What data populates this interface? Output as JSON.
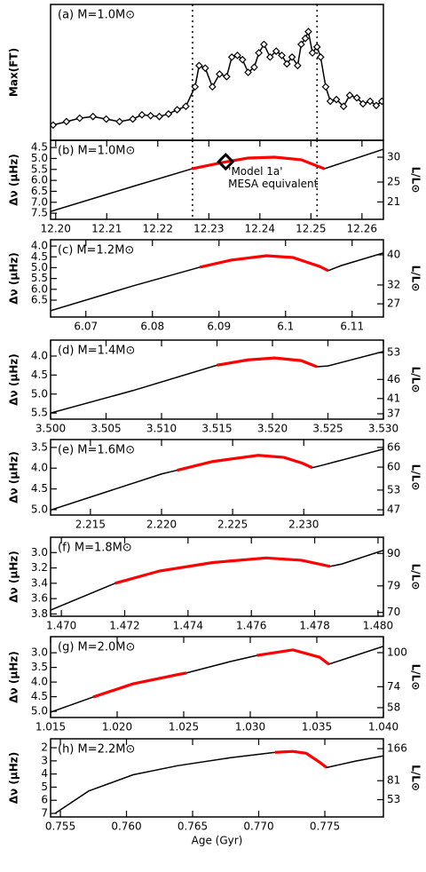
{
  "chart_data": [
    {
      "type": "line",
      "label": "(a) M=1.0M⊙",
      "ylabel": "Max(FT)",
      "xlim": [
        12.199,
        12.2642
      ],
      "ylim": [
        0,
        160
      ],
      "vlines": [
        12.2268,
        12.2512
      ],
      "series": [
        {
          "color": "#000000",
          "markers": true,
          "x": [
            12.1995,
            12.2021,
            12.2047,
            12.2073,
            12.2099,
            12.2125,
            12.2151,
            12.2169,
            12.2186,
            12.2203,
            12.2221,
            12.2238,
            12.2255,
            12.2273,
            12.2281,
            12.2293,
            12.2307,
            12.2321,
            12.2335,
            12.2345,
            12.2356,
            12.2366,
            12.2377,
            12.2389,
            12.2398,
            12.2408,
            12.242,
            12.2432,
            12.2443,
            12.2453,
            12.2463,
            12.2474,
            12.2481,
            12.2489,
            12.2495,
            12.2503,
            12.2512,
            12.2519,
            12.2529,
            12.2538,
            12.255,
            12.2564,
            12.2576,
            12.259,
            12.2602,
            12.2616,
            12.2628,
            12.2639
          ],
          "values": [
            18,
            22,
            26,
            28,
            25,
            22,
            25,
            30,
            29,
            28,
            31,
            36,
            40,
            63,
            88,
            85,
            63,
            78,
            75,
            98,
            100,
            95,
            80,
            86,
            103,
            113,
            98,
            105,
            100,
            90,
            98,
            88,
            113,
            120,
            128,
            103,
            110,
            98,
            63,
            46,
            48,
            40,
            53,
            50,
            43,
            46,
            41,
            46
          ]
        }
      ]
    },
    {
      "type": "line",
      "label": "(b) M=1.0M⊙",
      "ylabel": "Δν (μHz)",
      "y2label": "L/L⊙",
      "xlim": [
        12.199,
        12.2642
      ],
      "ylim": [
        7.78,
        4.17
      ],
      "y2lim": [
        17.5,
        33.4
      ],
      "xticks": [
        {
          "value": 12.2,
          "label": "12.20"
        },
        12.21,
        12.22,
        12.23,
        12.24,
        12.25,
        12.26
      ],
      "yticks": [
        4.5,
        {
          "value": 5,
          "label": "5.0"
        },
        5.5,
        {
          "value": 6,
          "label": "6.0"
        },
        6.5,
        {
          "value": 7,
          "label": "7.0"
        },
        7.5
      ],
      "y2ticks": [
        30,
        25,
        21
      ],
      "vlines": [
        12.2268,
        12.2512
      ],
      "series": [
        {
          "color": "#000000",
          "x": [
            12.199,
            12.2151,
            12.2267,
            12.2325,
            12.2377,
            12.2429,
            12.2481,
            12.2526,
            12.2642
          ],
          "values": [
            7.42,
            6.28,
            5.47,
            5.19,
            4.98,
            4.94,
            5.06,
            5.47,
            4.58
          ]
        },
        {
          "color": "#ff0000",
          "x": [
            12.2267,
            12.2325,
            12.2377,
            12.2429,
            12.2481,
            12.2526
          ],
          "values": [
            5.47,
            5.19,
            4.98,
            4.94,
            5.06,
            5.47
          ]
        },
        {
          "color": "#000000",
          "marker": "diamond",
          "x": [
            12.2333
          ],
          "values": [
            5.15
          ]
        }
      ],
      "annotation": {
        "text": [
          "'Model 1a'",
          "MESA equivalent"
        ],
        "x": 12.2338,
        "y": 5.6
      }
    },
    {
      "type": "line",
      "label": "(c) M=1.2M⊙",
      "ylabel": "Δν (μHz)",
      "y2label": "L/L⊙",
      "xlim": [
        6.0647,
        6.1147
      ],
      "ylim": [
        7.28,
        3.71
      ],
      "y2lim": [
        23.5,
        44
      ],
      "xticks": [
        6.07,
        6.08,
        6.09,
        6.1,
        6.11
      ],
      "yticks": [
        {
          "value": 4,
          "label": "4.0"
        },
        4.5,
        {
          "value": 5,
          "label": "5.0"
        },
        5.5,
        {
          "value": 6,
          "label": "6.0"
        },
        6.5
      ],
      "y2ticks": [
        40,
        32,
        27
      ],
      "series": [
        {
          "color": "#000000",
          "x": [
            6.0647,
            6.0771,
            6.0871,
            6.0918,
            6.0971,
            6.1011,
            6.1051,
            6.1064,
            6.1084,
            6.1147
          ],
          "values": [
            6.99,
            5.84,
            4.98,
            4.65,
            4.45,
            4.53,
            4.94,
            5.14,
            4.9,
            4.32
          ]
        },
        {
          "color": "#ff0000",
          "x": [
            6.0871,
            6.0918,
            6.0971,
            6.1011,
            6.1051,
            6.1064
          ],
          "values": [
            4.98,
            4.65,
            4.45,
            4.53,
            4.94,
            5.14
          ]
        }
      ]
    },
    {
      "type": "line",
      "label": "(d) M=1.4M⊙",
      "ylabel": "Δν (μHz)",
      "y2label": "L/L⊙",
      "xlim": [
        3.5,
        3.53
      ],
      "ylim": [
        5.66,
        3.58
      ],
      "y2lim": [
        35.6,
        56.3
      ],
      "xticks": [
        {
          "value": 3.5,
          "label": "3.500"
        },
        3.505,
        {
          "value": 3.51,
          "label": "3.510"
        },
        3.515,
        {
          "value": 3.52,
          "label": "3.520"
        },
        3.525,
        {
          "value": 3.53,
          "label": "3.530"
        }
      ],
      "yticks": [
        {
          "value": 4,
          "label": "4.0"
        },
        4.5,
        {
          "value": 5,
          "label": "5.0"
        },
        5.5
      ],
      "y2ticks": [
        53,
        46,
        41,
        37
      ],
      "series": [
        {
          "color": "#000000",
          "x": [
            3.5,
            3.5074,
            3.515,
            3.5178,
            3.5202,
            3.5226,
            3.524,
            3.525,
            3.53
          ],
          "values": [
            5.5,
            4.91,
            4.24,
            4.1,
            4.05,
            4.12,
            4.28,
            4.26,
            3.88
          ]
        },
        {
          "color": "#ff0000",
          "x": [
            3.515,
            3.5178,
            3.5202,
            3.5226,
            3.524
          ],
          "values": [
            4.24,
            4.1,
            4.05,
            4.12,
            4.28
          ]
        }
      ]
    },
    {
      "type": "line",
      "label": "(e) M=1.6M⊙",
      "ylabel": "Δν (μHz)",
      "y2label": "L/L⊙",
      "xlim": [
        2.2122,
        2.2356
      ],
      "ylim": [
        5.13,
        3.31
      ],
      "y2lim": [
        45.4,
        68.4
      ],
      "xticks": [
        2.215,
        {
          "value": 2.22,
          "label": "2.220"
        },
        2.225,
        {
          "value": 2.23,
          "label": "2.230"
        }
      ],
      "yticks": [
        3.5,
        {
          "value": 4,
          "label": "4.0"
        },
        4.5,
        {
          "value": 5,
          "label": "5.0"
        }
      ],
      "y2ticks": [
        66,
        60,
        53,
        47
      ],
      "series": [
        {
          "color": "#000000",
          "x": [
            2.2122,
            2.22,
            2.2211,
            2.2236,
            2.2268,
            2.2286,
            2.2299,
            2.2306,
            2.2313,
            2.2356
          ],
          "values": [
            5.01,
            4.14,
            4.05,
            3.84,
            3.69,
            3.74,
            3.88,
            3.99,
            3.93,
            3.54
          ]
        },
        {
          "color": "#ff0000",
          "x": [
            2.2211,
            2.2236,
            2.2268,
            2.2286,
            2.2299,
            2.2306
          ],
          "values": [
            4.05,
            3.84,
            3.69,
            3.74,
            3.88,
            3.99
          ]
        }
      ]
    },
    {
      "type": "line",
      "label": "(f) M=1.8M⊙",
      "ylabel": "Δν (μHz)",
      "y2label": "L/L⊙",
      "xlim": [
        1.46966,
        1.48017
      ],
      "ylim": [
        3.83,
        2.8
      ],
      "y2lim": [
        68.7,
        95.5
      ],
      "xticks": [
        {
          "value": 1.47,
          "label": "1.470"
        },
        1.472,
        1.474,
        1.476,
        1.478,
        {
          "value": 1.48,
          "label": "1.480"
        }
      ],
      "yticks": [
        {
          "value": 3,
          "label": "3.0"
        },
        3.2,
        3.4,
        3.6,
        3.8
      ],
      "y2ticks": [
        90,
        79,
        70
      ],
      "series": [
        {
          "color": "#000000",
          "x": [
            1.46966,
            1.4717,
            1.4731,
            1.47478,
            1.47646,
            1.47758,
            1.47848,
            1.47885,
            1.48017
          ],
          "values": [
            3.75,
            3.4,
            3.24,
            3.13,
            3.07,
            3.1,
            3.18,
            3.15,
            2.97
          ]
        },
        {
          "color": "#ff0000",
          "x": [
            1.4717,
            1.4731,
            1.47478,
            1.47646,
            1.47758,
            1.47848
          ],
          "values": [
            3.4,
            3.24,
            3.13,
            3.07,
            3.1,
            3.18
          ]
        }
      ]
    },
    {
      "type": "line",
      "label": "(g) M=2.0M⊙",
      "ylabel": "Δν (μHz)",
      "y2label": "L/L⊙",
      "xlim": [
        1.015,
        1.04
      ],
      "ylim": [
        5.21,
        2.45
      ],
      "y2lim": [
        50.5,
        112.2
      ],
      "xticks": [
        1.015,
        {
          "value": 1.02,
          "label": "1.020"
        },
        1.025,
        {
          "value": 1.03,
          "label": "1.030"
        },
        1.035,
        {
          "value": 1.04,
          "label": "1.040"
        }
      ],
      "yticks": [
        {
          "value": 3,
          "label": "3.0"
        },
        3.5,
        {
          "value": 4,
          "label": "4.0"
        },
        4.5,
        {
          "value": 5,
          "label": "5.0"
        }
      ],
      "y2ticks": [
        100,
        74,
        58
      ],
      "series": [
        {
          "color": "#000000",
          "x": [
            1.015,
            1.0182,
            1.0212,
            1.0245,
            1.0252,
            1.0285,
            1.0305,
            1.0332,
            1.0352,
            1.0359,
            1.04
          ],
          "values": [
            5.03,
            4.51,
            4.06,
            3.75,
            3.69,
            3.3,
            3.09,
            2.9,
            3.15,
            3.39,
            2.78
          ]
        },
        {
          "color": "#ff0000",
          "x": [
            1.0182,
            1.0212,
            1.0245,
            1.0252,
            1.0285,
            1.0305,
            1.0332,
            1.0352,
            1.0359
          ],
          "values": [
            4.51,
            4.06,
            3.75,
            3.69,
            null,
            3.09,
            2.9,
            3.15,
            3.39
          ]
        }
      ]
    },
    {
      "type": "line",
      "label": "(h) M=2.2M⊙",
      "ylabel": "Δν (μHz)",
      "y2label": "L/L⊙",
      "xlabel": "Age (Gyr)",
      "xlim": [
        0.75426,
        0.77943
      ],
      "ylim": [
        7.27,
        1.32
      ],
      "y2lim": [
        36,
        207
      ],
      "y2log": true,
      "xticks": [
        0.755,
        {
          "value": 0.76,
          "label": "0.760"
        },
        0.765,
        {
          "value": 0.77,
          "label": "0.770"
        },
        0.775
      ],
      "yticks": [
        2,
        3,
        4,
        5,
        6,
        7
      ],
      "y2ticks": [
        166,
        81,
        53
      ],
      "series": [
        {
          "color": "#000000",
          "x": [
            0.7546,
            0.75715,
            0.7605,
            0.76386,
            0.76788,
            0.77124,
            0.77258,
            0.77359,
            0.7746,
            0.77513,
            0.77728,
            0.77943
          ],
          "values": [
            7.0,
            5.29,
            4.06,
            3.37,
            2.76,
            2.35,
            2.28,
            2.42,
            3.1,
            3.51,
            3.03,
            2.62
          ]
        },
        {
          "color": "#ff0000",
          "x": [
            0.77124,
            0.77258,
            0.77359,
            0.7746,
            0.77513
          ],
          "values": [
            2.35,
            2.28,
            2.42,
            3.1,
            3.51
          ]
        }
      ]
    }
  ]
}
